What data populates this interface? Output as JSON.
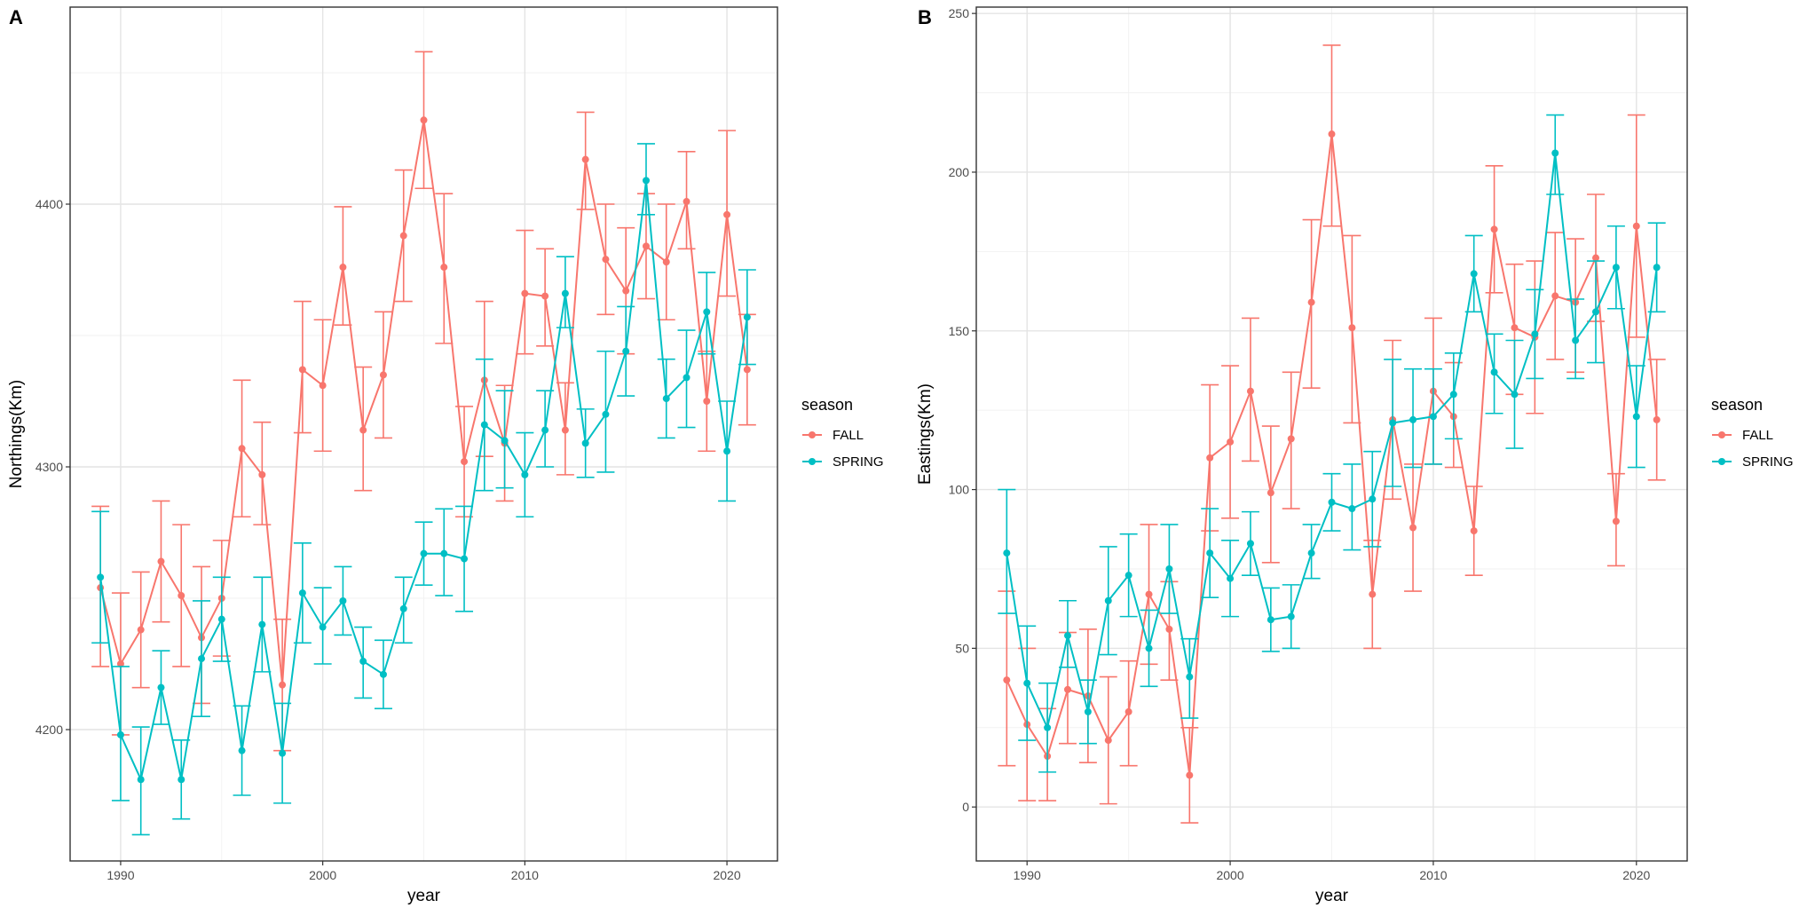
{
  "chart_data": [
    {
      "type": "line",
      "panel_label": "A",
      "xlabel": "year",
      "ylabel": "Northings(Km)",
      "xlim": [
        1987.5,
        2022.5
      ],
      "ylim": [
        4150,
        4475
      ],
      "x_ticks": [
        1990,
        2000,
        2010,
        2020
      ],
      "y_ticks": [
        4200,
        4300,
        4400
      ],
      "error_bars": true,
      "grid": true,
      "legend": {
        "title": "season",
        "position": "right",
        "entries": [
          "FALL",
          "SPRING"
        ]
      },
      "x": [
        1989,
        1990,
        1991,
        1992,
        1993,
        1994,
        1995,
        1996,
        1997,
        1998,
        1999,
        2000,
        2001,
        2002,
        2003,
        2004,
        2005,
        2006,
        2007,
        2008,
        2009,
        2010,
        2011,
        2012,
        2013,
        2014,
        2015,
        2016,
        2017,
        2018,
        2019,
        2020,
        2021
      ],
      "series": [
        {
          "name": "FALL",
          "color": "#F8766D",
          "values": [
            4254,
            4225,
            4238,
            4264,
            4251,
            4235,
            4250,
            4307,
            4297,
            4217,
            4337,
            4331,
            4376,
            4314,
            4335,
            4388,
            4432,
            4376,
            4302,
            4333,
            4309,
            4366,
            4365,
            4314,
            4417,
            4379,
            4367,
            4384,
            4378,
            4401,
            4325,
            4396,
            4337
          ],
          "err_low": [
            4224,
            4198,
            4216,
            4241,
            4224,
            4210,
            4228,
            4281,
            4278,
            4192,
            4313,
            4306,
            4354,
            4291,
            4311,
            4363,
            4406,
            4347,
            4281,
            4304,
            4287,
            4343,
            4346,
            4297,
            4398,
            4358,
            4343,
            4364,
            4356,
            4383,
            4306,
            4365,
            4316
          ],
          "err_high": [
            4285,
            4252,
            4260,
            4287,
            4278,
            4262,
            4272,
            4333,
            4317,
            4242,
            4363,
            4356,
            4399,
            4338,
            4359,
            4413,
            4458,
            4404,
            4323,
            4363,
            4331,
            4390,
            4383,
            4332,
            4435,
            4400,
            4391,
            4404,
            4400,
            4420,
            4344,
            4428,
            4358
          ]
        },
        {
          "name": "SPRING",
          "color": "#00BFC4",
          "values": [
            4258,
            4198,
            4181,
            4216,
            4181,
            4227,
            4242,
            4192,
            4240,
            4191,
            4252,
            4239,
            4249,
            4226,
            4221,
            4246,
            4267,
            4267,
            4265,
            4316,
            4310,
            4297,
            4314,
            4366,
            4309,
            4320,
            4344,
            4409,
            4326,
            4334,
            4359,
            4306,
            4357
          ],
          "err_low": [
            4233,
            4173,
            4160,
            4202,
            4166,
            4205,
            4226,
            4175,
            4222,
            4172,
            4233,
            4225,
            4236,
            4212,
            4208,
            4233,
            4255,
            4251,
            4245,
            4291,
            4292,
            4281,
            4300,
            4353,
            4296,
            4298,
            4327,
            4396,
            4311,
            4315,
            4343,
            4287,
            4339
          ],
          "err_high": [
            4283,
            4224,
            4201,
            4230,
            4196,
            4249,
            4258,
            4209,
            4258,
            4210,
            4271,
            4254,
            4262,
            4239,
            4234,
            4258,
            4279,
            4284,
            4285,
            4341,
            4329,
            4313,
            4329,
            4380,
            4322,
            4344,
            4361,
            4423,
            4341,
            4352,
            4374,
            4325,
            4375
          ]
        }
      ]
    },
    {
      "type": "line",
      "panel_label": "B",
      "xlabel": "year",
      "ylabel": "Eastings(Km)",
      "xlim": [
        1987.5,
        2022.5
      ],
      "ylim": [
        -17,
        252
      ],
      "x_ticks": [
        1990,
        2000,
        2010,
        2020
      ],
      "y_ticks": [
        0,
        50,
        100,
        150,
        200,
        250
      ],
      "error_bars": true,
      "grid": true,
      "legend": {
        "title": "season",
        "position": "right",
        "entries": [
          "FALL",
          "SPRING"
        ]
      },
      "x": [
        1989,
        1990,
        1991,
        1992,
        1993,
        1994,
        1995,
        1996,
        1997,
        1998,
        1999,
        2000,
        2001,
        2002,
        2003,
        2004,
        2005,
        2006,
        2007,
        2008,
        2009,
        2010,
        2011,
        2012,
        2013,
        2014,
        2015,
        2016,
        2017,
        2018,
        2019,
        2020,
        2021
      ],
      "series": [
        {
          "name": "FALL",
          "color": "#F8766D",
          "values": [
            40,
            26,
            16,
            37,
            35,
            21,
            30,
            67,
            56,
            10,
            110,
            115,
            131,
            99,
            116,
            159,
            212,
            151,
            67,
            122,
            88,
            131,
            123,
            87,
            182,
            151,
            148,
            161,
            159,
            173,
            90,
            183,
            122
          ],
          "err_low": [
            13,
            2,
            2,
            20,
            14,
            1,
            13,
            45,
            40,
            -5,
            87,
            91,
            109,
            77,
            94,
            132,
            183,
            121,
            50,
            97,
            68,
            108,
            107,
            73,
            162,
            130,
            124,
            141,
            137,
            153,
            76,
            148,
            103
          ],
          "err_high": [
            68,
            50,
            31,
            55,
            56,
            41,
            46,
            89,
            71,
            25,
            133,
            139,
            154,
            120,
            137,
            185,
            240,
            180,
            84,
            147,
            108,
            154,
            140,
            101,
            202,
            171,
            172,
            181,
            179,
            193,
            105,
            218,
            141
          ]
        },
        {
          "name": "SPRING",
          "color": "#00BFC4",
          "values": [
            80,
            39,
            25,
            54,
            30,
            65,
            73,
            50,
            75,
            41,
            80,
            72,
            83,
            59,
            60,
            80,
            96,
            94,
            97,
            121,
            122,
            123,
            130,
            168,
            137,
            130,
            149,
            206,
            147,
            156,
            170,
            123,
            170
          ],
          "err_low": [
            61,
            21,
            11,
            44,
            20,
            48,
            60,
            38,
            61,
            28,
            66,
            60,
            73,
            49,
            50,
            72,
            87,
            81,
            82,
            101,
            107,
            108,
            116,
            156,
            124,
            113,
            135,
            193,
            135,
            140,
            157,
            107,
            156
          ],
          "err_high": [
            100,
            57,
            39,
            65,
            40,
            82,
            86,
            62,
            89,
            53,
            94,
            84,
            93,
            69,
            70,
            89,
            105,
            108,
            112,
            141,
            138,
            138,
            143,
            180,
            149,
            147,
            163,
            218,
            160,
            172,
            183,
            139,
            184
          ]
        }
      ]
    }
  ]
}
